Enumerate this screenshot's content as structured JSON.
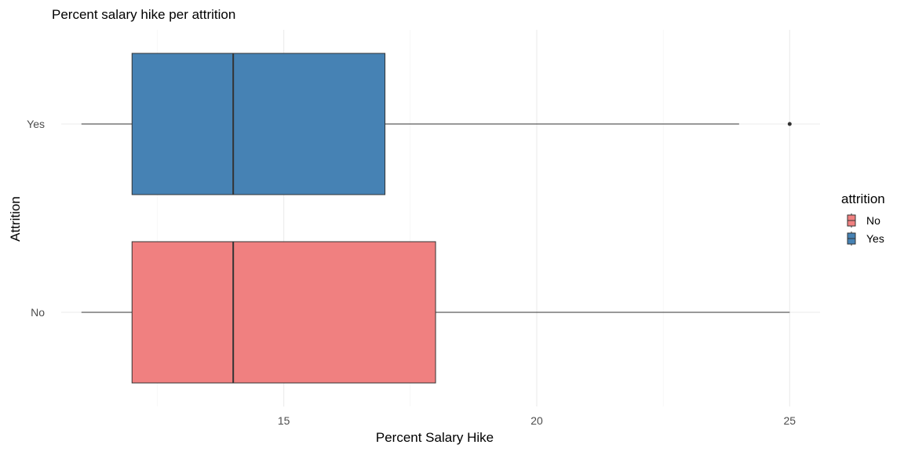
{
  "chart_data": {
    "type": "boxplot",
    "orientation": "horizontal",
    "title": "Percent salary hike per attrition",
    "xlabel": "Percent Salary Hike",
    "ylabel": "Attrition",
    "xlim": [
      10.6,
      25.6
    ],
    "x_ticks": [
      15,
      20,
      25
    ],
    "x_minor_ticks": [
      12.5,
      17.5,
      22.5
    ],
    "categories": [
      "No",
      "Yes"
    ],
    "grid": true,
    "legend": {
      "title": "attrition",
      "position": "right",
      "entries": [
        "No",
        "Yes"
      ]
    },
    "series": [
      {
        "name": "No",
        "color": "#F08080",
        "min": 11,
        "q1": 12,
        "median": 14,
        "q3": 18,
        "max": 25,
        "outliers": []
      },
      {
        "name": "Yes",
        "color": "#4682B4",
        "min": 11,
        "q1": 12,
        "median": 14,
        "q3": 17,
        "max": 24,
        "outliers": [
          25
        ]
      }
    ]
  }
}
